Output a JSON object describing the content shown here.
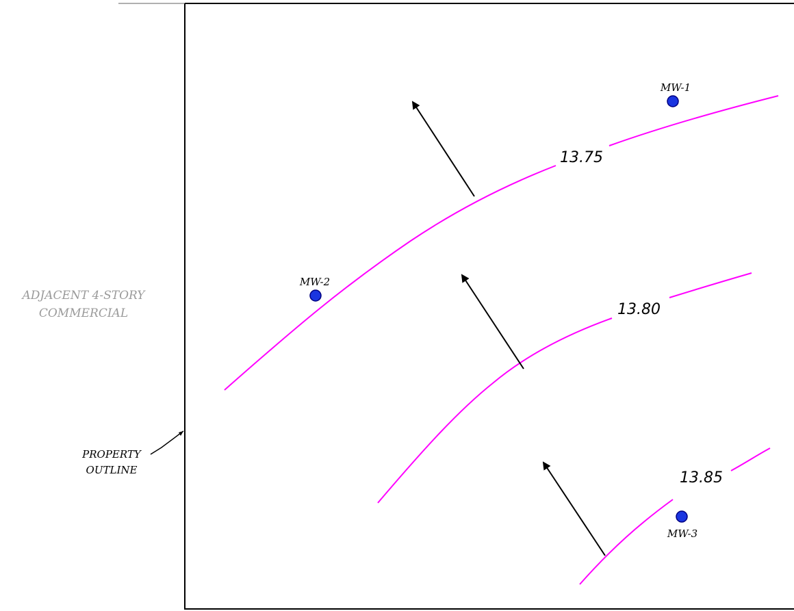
{
  "colors": {
    "contour": "#ff00ff",
    "well_fill": "#1a35e0",
    "well_stroke": "#000080",
    "outline": "#000000",
    "adjacent_text": "#9a9a9a",
    "flow_arrow": "#000000"
  },
  "adjacent": {
    "line1": "ADJACENT 4-STORY",
    "line2": "COMMERCIAL"
  },
  "property": {
    "line1": "PROPERTY",
    "line2": "OUTLINE"
  },
  "wells": [
    {
      "id": "mw-1",
      "label": "MW-1"
    },
    {
      "id": "mw-2",
      "label": "MW-2"
    },
    {
      "id": "mw-3",
      "label": "MW-3"
    }
  ],
  "contours": [
    {
      "id": "contour-13-75",
      "label": "13.75"
    },
    {
      "id": "contour-13-80",
      "label": "13.80"
    },
    {
      "id": "contour-13-85",
      "label": "13.85"
    }
  ]
}
